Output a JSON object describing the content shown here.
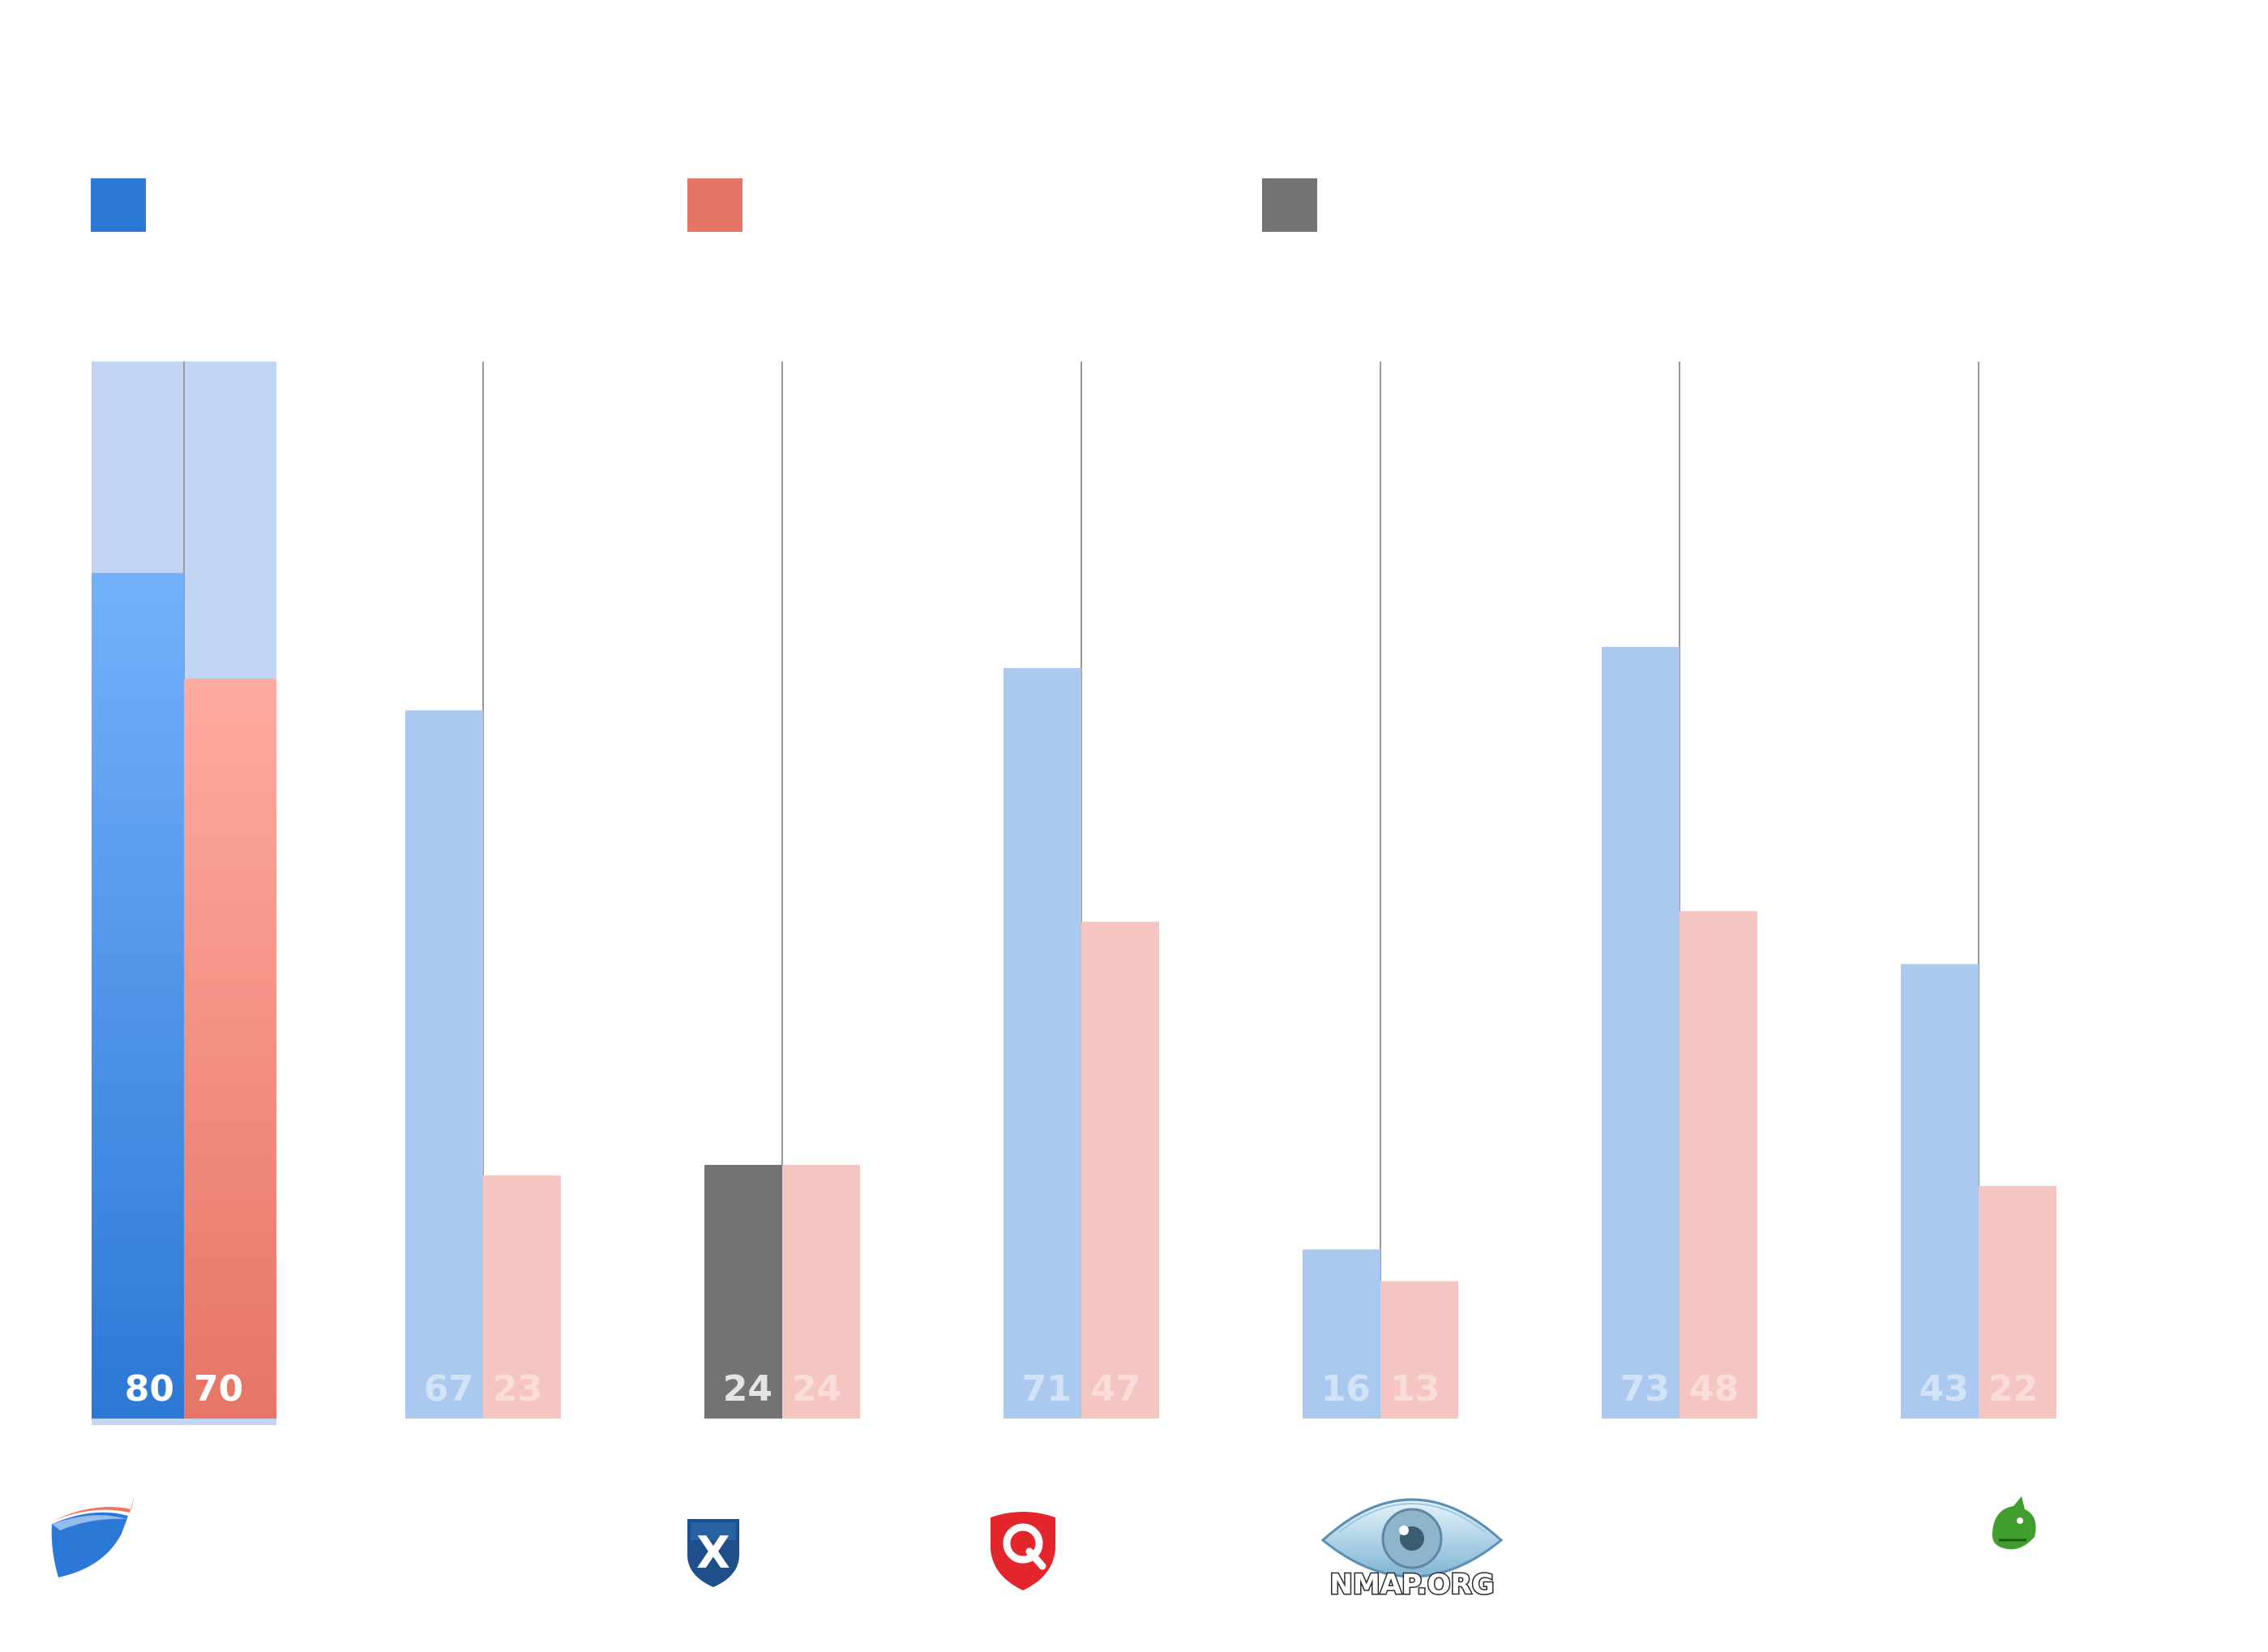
{
  "colors": {
    "primary_blue": "#2c78d6",
    "primary_red": "#e67566",
    "gray": "#737373",
    "faded_blue": "#abc9ee",
    "faded_red": "#f5c6c1",
    "track": "#c2d6f3",
    "separator": "#999999"
  },
  "chart_data": {
    "type": "bar",
    "title": "",
    "xlabel": "",
    "ylabel": "",
    "ylim": [
      0,
      100
    ],
    "legend": {
      "position": "top-left",
      "entries": [
        "",
        "",
        ""
      ],
      "swatch_colors": [
        "#2c78d6",
        "#e67566",
        "#737373"
      ]
    },
    "categories": [
      {
        "logo": "shield-logo-icon",
        "logo_text": ""
      },
      {
        "logo": "",
        "logo_text": ""
      },
      {
        "logo": "x-shield-logo-icon",
        "logo_text": ""
      },
      {
        "logo": "q-logo-icon",
        "logo_text": ""
      },
      {
        "logo": "eye-logo-icon",
        "logo_text": "NMAP.ORG"
      },
      {
        "logo": "",
        "logo_text": ""
      },
      {
        "logo": "dragon-logo-icon",
        "logo_text": ""
      }
    ],
    "series": [
      {
        "name": "",
        "values": [
          80,
          67,
          24,
          71,
          16,
          73,
          43
        ]
      },
      {
        "name": "",
        "values": [
          70,
          23,
          24,
          47,
          13,
          48,
          22
        ]
      }
    ],
    "highlighted_index": 0,
    "gray_index": 2
  }
}
